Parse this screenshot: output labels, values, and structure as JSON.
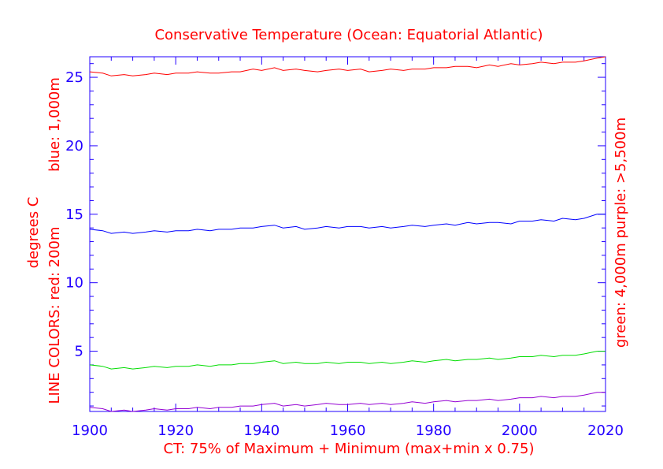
{
  "chart_data": {
    "type": "line",
    "title": "Conservative Temperature (Ocean: Equatorial Atlantic)",
    "xlabel": "CT: 75% of Maximum + Minimum (max+min x 0.75)",
    "ylabel_left": [
      "LINE COLORS: red: 200m",
      "degrees C",
      "blue: 1,000m"
    ],
    "ylabel_right": [
      "green: 4,000m",
      "purple: >5,500m"
    ],
    "xlim": [
      1900,
      2020
    ],
    "ylim": [
      0.6,
      26.5
    ],
    "xticks": [
      1900,
      1920,
      1940,
      1960,
      1980,
      2000,
      2020
    ],
    "yticks": [
      5,
      10,
      15,
      20,
      25
    ],
    "series": [
      {
        "name": "red: 200m",
        "color": "#ff0000",
        "x": [
          1900,
          1903,
          1905,
          1908,
          1910,
          1913,
          1915,
          1918,
          1920,
          1923,
          1925,
          1928,
          1930,
          1933,
          1935,
          1938,
          1940,
          1943,
          1945,
          1948,
          1950,
          1953,
          1955,
          1958,
          1960,
          1963,
          1965,
          1968,
          1970,
          1973,
          1975,
          1978,
          1980,
          1983,
          1985,
          1988,
          1990,
          1993,
          1995,
          1998,
          2000,
          2003,
          2005,
          2008,
          2010,
          2013,
          2015,
          2018,
          2020
        ],
        "values": [
          25.4,
          25.3,
          25.1,
          25.2,
          25.1,
          25.2,
          25.3,
          25.2,
          25.3,
          25.3,
          25.4,
          25.3,
          25.3,
          25.4,
          25.4,
          25.6,
          25.5,
          25.7,
          25.5,
          25.6,
          25.5,
          25.4,
          25.5,
          25.6,
          25.5,
          25.6,
          25.4,
          25.5,
          25.6,
          25.5,
          25.6,
          25.6,
          25.7,
          25.7,
          25.8,
          25.8,
          25.7,
          25.9,
          25.8,
          26.0,
          25.9,
          26.0,
          26.1,
          26.0,
          26.1,
          26.1,
          26.2,
          26.4,
          26.5
        ]
      },
      {
        "name": "blue: 1,000m",
        "color": "#0000ff",
        "x": [
          1900,
          1903,
          1905,
          1908,
          1910,
          1913,
          1915,
          1918,
          1920,
          1923,
          1925,
          1928,
          1930,
          1933,
          1935,
          1938,
          1940,
          1943,
          1945,
          1948,
          1950,
          1953,
          1955,
          1958,
          1960,
          1963,
          1965,
          1968,
          1970,
          1973,
          1975,
          1978,
          1980,
          1983,
          1985,
          1988,
          1990,
          1993,
          1995,
          1998,
          2000,
          2003,
          2005,
          2008,
          2010,
          2013,
          2015,
          2018,
          2020
        ],
        "values": [
          13.9,
          13.8,
          13.6,
          13.7,
          13.6,
          13.7,
          13.8,
          13.7,
          13.8,
          13.8,
          13.9,
          13.8,
          13.9,
          13.9,
          14.0,
          14.0,
          14.1,
          14.2,
          14.0,
          14.1,
          13.9,
          14.0,
          14.1,
          14.0,
          14.1,
          14.1,
          14.0,
          14.1,
          14.0,
          14.1,
          14.2,
          14.1,
          14.2,
          14.3,
          14.2,
          14.4,
          14.3,
          14.4,
          14.4,
          14.3,
          14.5,
          14.5,
          14.6,
          14.5,
          14.7,
          14.6,
          14.7,
          15.0,
          15.0
        ]
      },
      {
        "name": "green: 4,000m",
        "color": "#00dd00",
        "x": [
          1900,
          1903,
          1905,
          1908,
          1910,
          1913,
          1915,
          1918,
          1920,
          1923,
          1925,
          1928,
          1930,
          1933,
          1935,
          1938,
          1940,
          1943,
          1945,
          1948,
          1950,
          1953,
          1955,
          1958,
          1960,
          1963,
          1965,
          1968,
          1970,
          1973,
          1975,
          1978,
          1980,
          1983,
          1985,
          1988,
          1990,
          1993,
          1995,
          1998,
          2000,
          2003,
          2005,
          2008,
          2010,
          2013,
          2015,
          2018,
          2020
        ],
        "values": [
          4.0,
          3.9,
          3.7,
          3.8,
          3.7,
          3.8,
          3.9,
          3.8,
          3.9,
          3.9,
          4.0,
          3.9,
          4.0,
          4.0,
          4.1,
          4.1,
          4.2,
          4.3,
          4.1,
          4.2,
          4.1,
          4.1,
          4.2,
          4.1,
          4.2,
          4.2,
          4.1,
          4.2,
          4.1,
          4.2,
          4.3,
          4.2,
          4.3,
          4.4,
          4.3,
          4.4,
          4.4,
          4.5,
          4.4,
          4.5,
          4.6,
          4.6,
          4.7,
          4.6,
          4.7,
          4.7,
          4.8,
          5.0,
          5.0
        ]
      },
      {
        "name": "purple: >5,500m",
        "color": "#9400d3",
        "x": [
          1900,
          1903,
          1905,
          1908,
          1910,
          1913,
          1915,
          1918,
          1920,
          1923,
          1925,
          1928,
          1930,
          1933,
          1935,
          1938,
          1940,
          1943,
          1945,
          1948,
          1950,
          1953,
          1955,
          1958,
          1960,
          1963,
          1965,
          1968,
          1970,
          1973,
          1975,
          1978,
          1980,
          1983,
          1985,
          1988,
          1990,
          1993,
          1995,
          1998,
          2000,
          2003,
          2005,
          2008,
          2010,
          2013,
          2015,
          2018,
          2020
        ],
        "values": [
          0.9,
          0.8,
          0.6,
          0.7,
          0.6,
          0.7,
          0.8,
          0.7,
          0.8,
          0.8,
          0.9,
          0.8,
          0.9,
          0.9,
          1.0,
          1.0,
          1.1,
          1.2,
          1.0,
          1.1,
          1.0,
          1.1,
          1.2,
          1.1,
          1.1,
          1.2,
          1.1,
          1.2,
          1.1,
          1.2,
          1.3,
          1.2,
          1.3,
          1.4,
          1.3,
          1.4,
          1.4,
          1.5,
          1.4,
          1.5,
          1.6,
          1.6,
          1.7,
          1.6,
          1.7,
          1.7,
          1.8,
          2.0,
          2.0
        ]
      }
    ]
  },
  "colors": {
    "title_text": "#ff0000",
    "axis": "#2200ff",
    "tick_labels": "#2200ff",
    "axis_labels": "#ff0000"
  }
}
